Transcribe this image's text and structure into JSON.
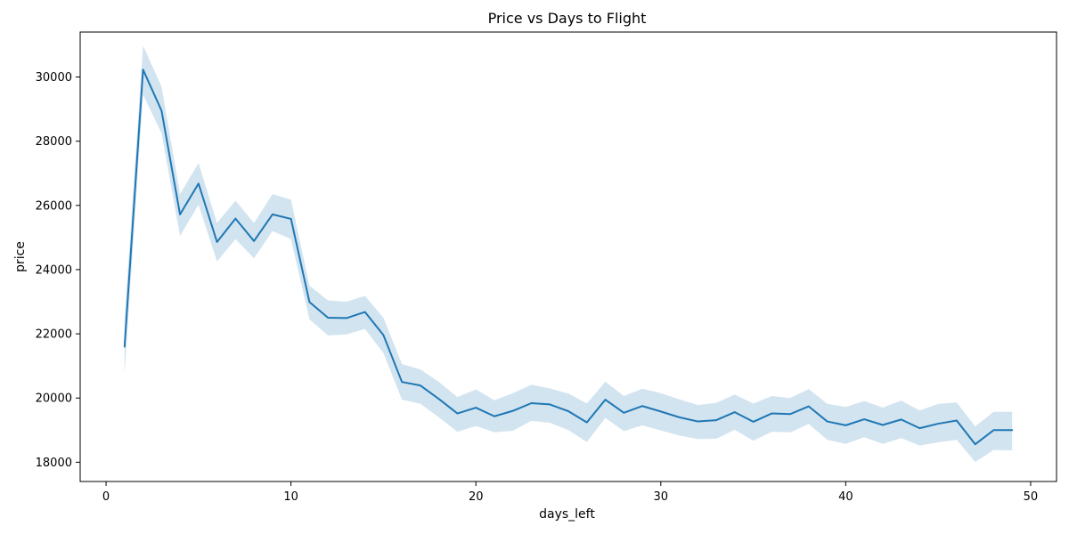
{
  "chart_data": {
    "type": "line",
    "title": "Price vs Days to Flight",
    "xlabel": "days_left",
    "ylabel": "price",
    "xlim": [
      -1.4,
      51.4
    ],
    "ylim": [
      17400,
      31400
    ],
    "xticks": [
      0,
      10,
      20,
      30,
      40,
      50
    ],
    "yticks": [
      18000,
      20000,
      22000,
      24000,
      26000,
      28000,
      30000
    ],
    "grid": false,
    "colors": {
      "line": "#1f77b4",
      "band": "#1f77b4"
    },
    "x": [
      1,
      2,
      3,
      4,
      5,
      6,
      7,
      8,
      9,
      10,
      11,
      12,
      13,
      14,
      15,
      16,
      17,
      18,
      19,
      20,
      21,
      22,
      23,
      24,
      25,
      26,
      27,
      28,
      29,
      30,
      31,
      32,
      33,
      34,
      35,
      36,
      37,
      38,
      39,
      40,
      41,
      42,
      43,
      44,
      45,
      46,
      47,
      48,
      49
    ],
    "series": [
      {
        "values": [
          21600,
          30230,
          28950,
          25720,
          26680,
          24860,
          25590,
          24890,
          25720,
          25580,
          22990,
          22500,
          22490,
          22680,
          21960,
          20500,
          20390,
          19970,
          19520,
          19700,
          19430,
          19600,
          19840,
          19800,
          19590,
          19240,
          19950,
          19540,
          19750,
          19580,
          19400,
          19270,
          19310,
          19560,
          19260,
          19520,
          19500,
          19740,
          19270,
          19150,
          19340,
          19160,
          19330,
          19060,
          19200,
          19300,
          18560,
          19000,
          19000
        ],
        "ci_lower": [
          20750,
          29450,
          28250,
          25050,
          26020,
          24250,
          24950,
          24350,
          25200,
          24950,
          22450,
          21950,
          21980,
          22150,
          21400,
          19950,
          19820,
          19400,
          18950,
          19130,
          18930,
          18980,
          19290,
          19230,
          19000,
          18630,
          19380,
          18970,
          19150,
          18990,
          18830,
          18720,
          18730,
          19010,
          18670,
          18950,
          18930,
          19190,
          18700,
          18570,
          18780,
          18570,
          18750,
          18520,
          18620,
          18700,
          18010,
          18380,
          18370
        ],
        "ci_upper": [
          22450,
          30980,
          29700,
          26350,
          27320,
          25450,
          26150,
          25450,
          26350,
          26180,
          23500,
          23040,
          23000,
          23180,
          22500,
          21060,
          20890,
          20500,
          20030,
          20270,
          19930,
          20150,
          20410,
          20300,
          20140,
          19830,
          20510,
          20060,
          20290,
          20150,
          19960,
          19780,
          19850,
          20110,
          19830,
          20060,
          20000,
          20280,
          19820,
          19720,
          19910,
          19700,
          19920,
          19610,
          19820,
          19860,
          19120,
          19570,
          19570
        ]
      }
    ]
  }
}
